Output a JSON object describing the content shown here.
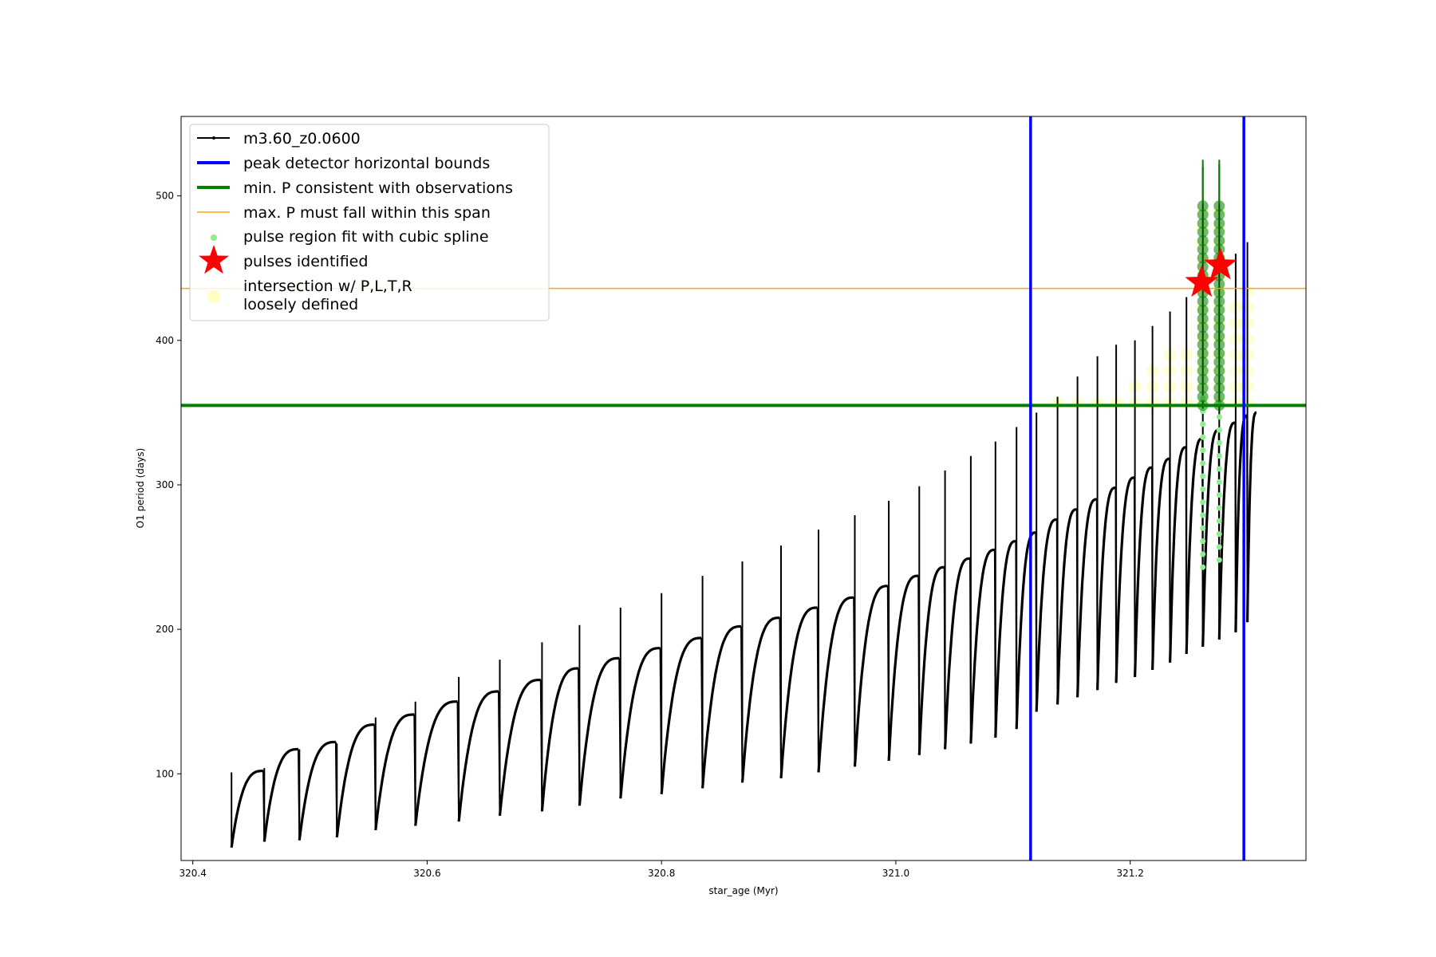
{
  "chart_data": {
    "type": "line",
    "xlabel": "star_age (Myr)",
    "ylabel": "O1 period (days)",
    "xlim": [
      320.39,
      321.35
    ],
    "ylim": [
      40,
      555
    ],
    "xticks": [
      320.4,
      320.6,
      320.8,
      321.0,
      321.2
    ],
    "xtick_labels": [
      "320.4",
      "320.6",
      "320.8",
      "321.0",
      "321.2"
    ],
    "yticks": [
      100,
      200,
      300,
      400,
      500
    ],
    "ytick_labels": [
      "100",
      "200",
      "300",
      "400",
      "500"
    ],
    "grid": false,
    "legend_position": "upper-left",
    "legend": [
      {
        "label": "m3.60_z0.0600",
        "kind": "line-marker",
        "color": "#000000"
      },
      {
        "label": "peak detector horizontal bounds",
        "kind": "line",
        "color": "#0000ff"
      },
      {
        "label": "min. P consistent with observations",
        "kind": "line",
        "color": "#008000"
      },
      {
        "label": "max. P must fall within this span",
        "kind": "thin-line",
        "color": "#ffa500"
      },
      {
        "label": "pulse region fit with cubic spline",
        "kind": "dot",
        "color": "#90ee90"
      },
      {
        "label": "pulses identified",
        "kind": "star",
        "color": "#ff0000"
      },
      {
        "label": "intersection w/ P,L,T,R\nloosely defined",
        "kind": "big-dot",
        "color": "#ffff99"
      }
    ],
    "vertical_bounds": [
      321.115,
      321.297
    ],
    "min_P": 355,
    "max_P": 436,
    "pulses": {
      "x": [
        320.433,
        320.461,
        320.491,
        320.523,
        320.556,
        320.59,
        320.627,
        320.662,
        320.698,
        320.73,
        320.765,
        320.8,
        320.835,
        320.869,
        320.902,
        320.934,
        320.965,
        320.994,
        321.02,
        321.042,
        321.064,
        321.085,
        321.103,
        321.12,
        321.138,
        321.155,
        321.172,
        321.188,
        321.204,
        321.219,
        321.234,
        321.248,
        321.262,
        321.276,
        321.29,
        321.3
      ],
      "start": [
        49,
        53,
        54,
        56,
        61,
        64,
        67,
        71,
        74,
        78,
        83,
        86,
        90,
        94,
        97,
        101,
        105,
        109,
        113,
        117,
        121,
        125,
        131,
        143,
        148,
        153,
        158,
        163,
        167,
        172,
        177,
        183,
        188,
        193,
        198,
        205
      ],
      "peak": [
        102,
        117,
        122,
        134,
        141,
        150,
        157,
        165,
        173,
        180,
        187,
        194,
        202,
        208,
        215,
        222,
        230,
        237,
        243,
        249,
        255,
        261,
        267,
        276,
        283,
        290,
        298,
        305,
        312,
        318,
        326,
        332,
        338,
        343,
        348,
        350
      ],
      "spike": [
        101,
        104,
        117,
        121,
        139,
        150,
        167,
        179,
        191,
        203,
        215,
        225,
        237,
        247,
        258,
        269,
        279,
        289,
        299,
        310,
        320,
        330,
        340,
        350,
        361,
        375,
        389,
        397,
        400,
        410,
        420,
        430,
        520,
        522,
        460,
        468
      ]
    },
    "highlight_pulse_x": [
      321.262,
      321.276
    ],
    "stars": [
      {
        "x": 321.261,
        "y": 440
      },
      {
        "x": 321.277,
        "y": 452
      }
    ]
  }
}
